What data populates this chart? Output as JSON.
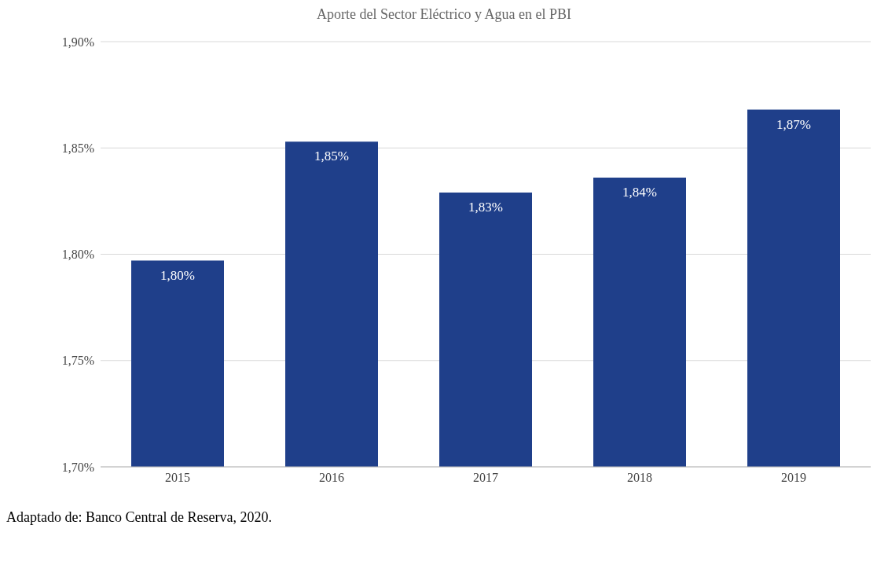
{
  "chart_data": {
    "type": "bar",
    "title": "Aporte del Sector Eléctrico y Agua en el PBI",
    "categories": [
      "2015",
      "2016",
      "2017",
      "2018",
      "2019"
    ],
    "values": [
      1.797,
      1.853,
      1.829,
      1.836,
      1.868
    ],
    "value_labels": [
      "1,80%",
      "1,85%",
      "1,83%",
      "1,84%",
      "1,87%"
    ],
    "color": "#1f3f8a",
    "ylim": [
      1.7,
      1.9
    ],
    "yticks": [
      {
        "value": 1.7,
        "label": "1,70%"
      },
      {
        "value": 1.75,
        "label": "1,75%"
      },
      {
        "value": 1.8,
        "label": "1,80%"
      },
      {
        "value": 1.85,
        "label": "1,85%"
      },
      {
        "value": 1.9,
        "label": "1,90%"
      }
    ],
    "grid": "y",
    "annotations": [
      "Adaptado de: Banco Central de Reserva, 2020."
    ]
  }
}
